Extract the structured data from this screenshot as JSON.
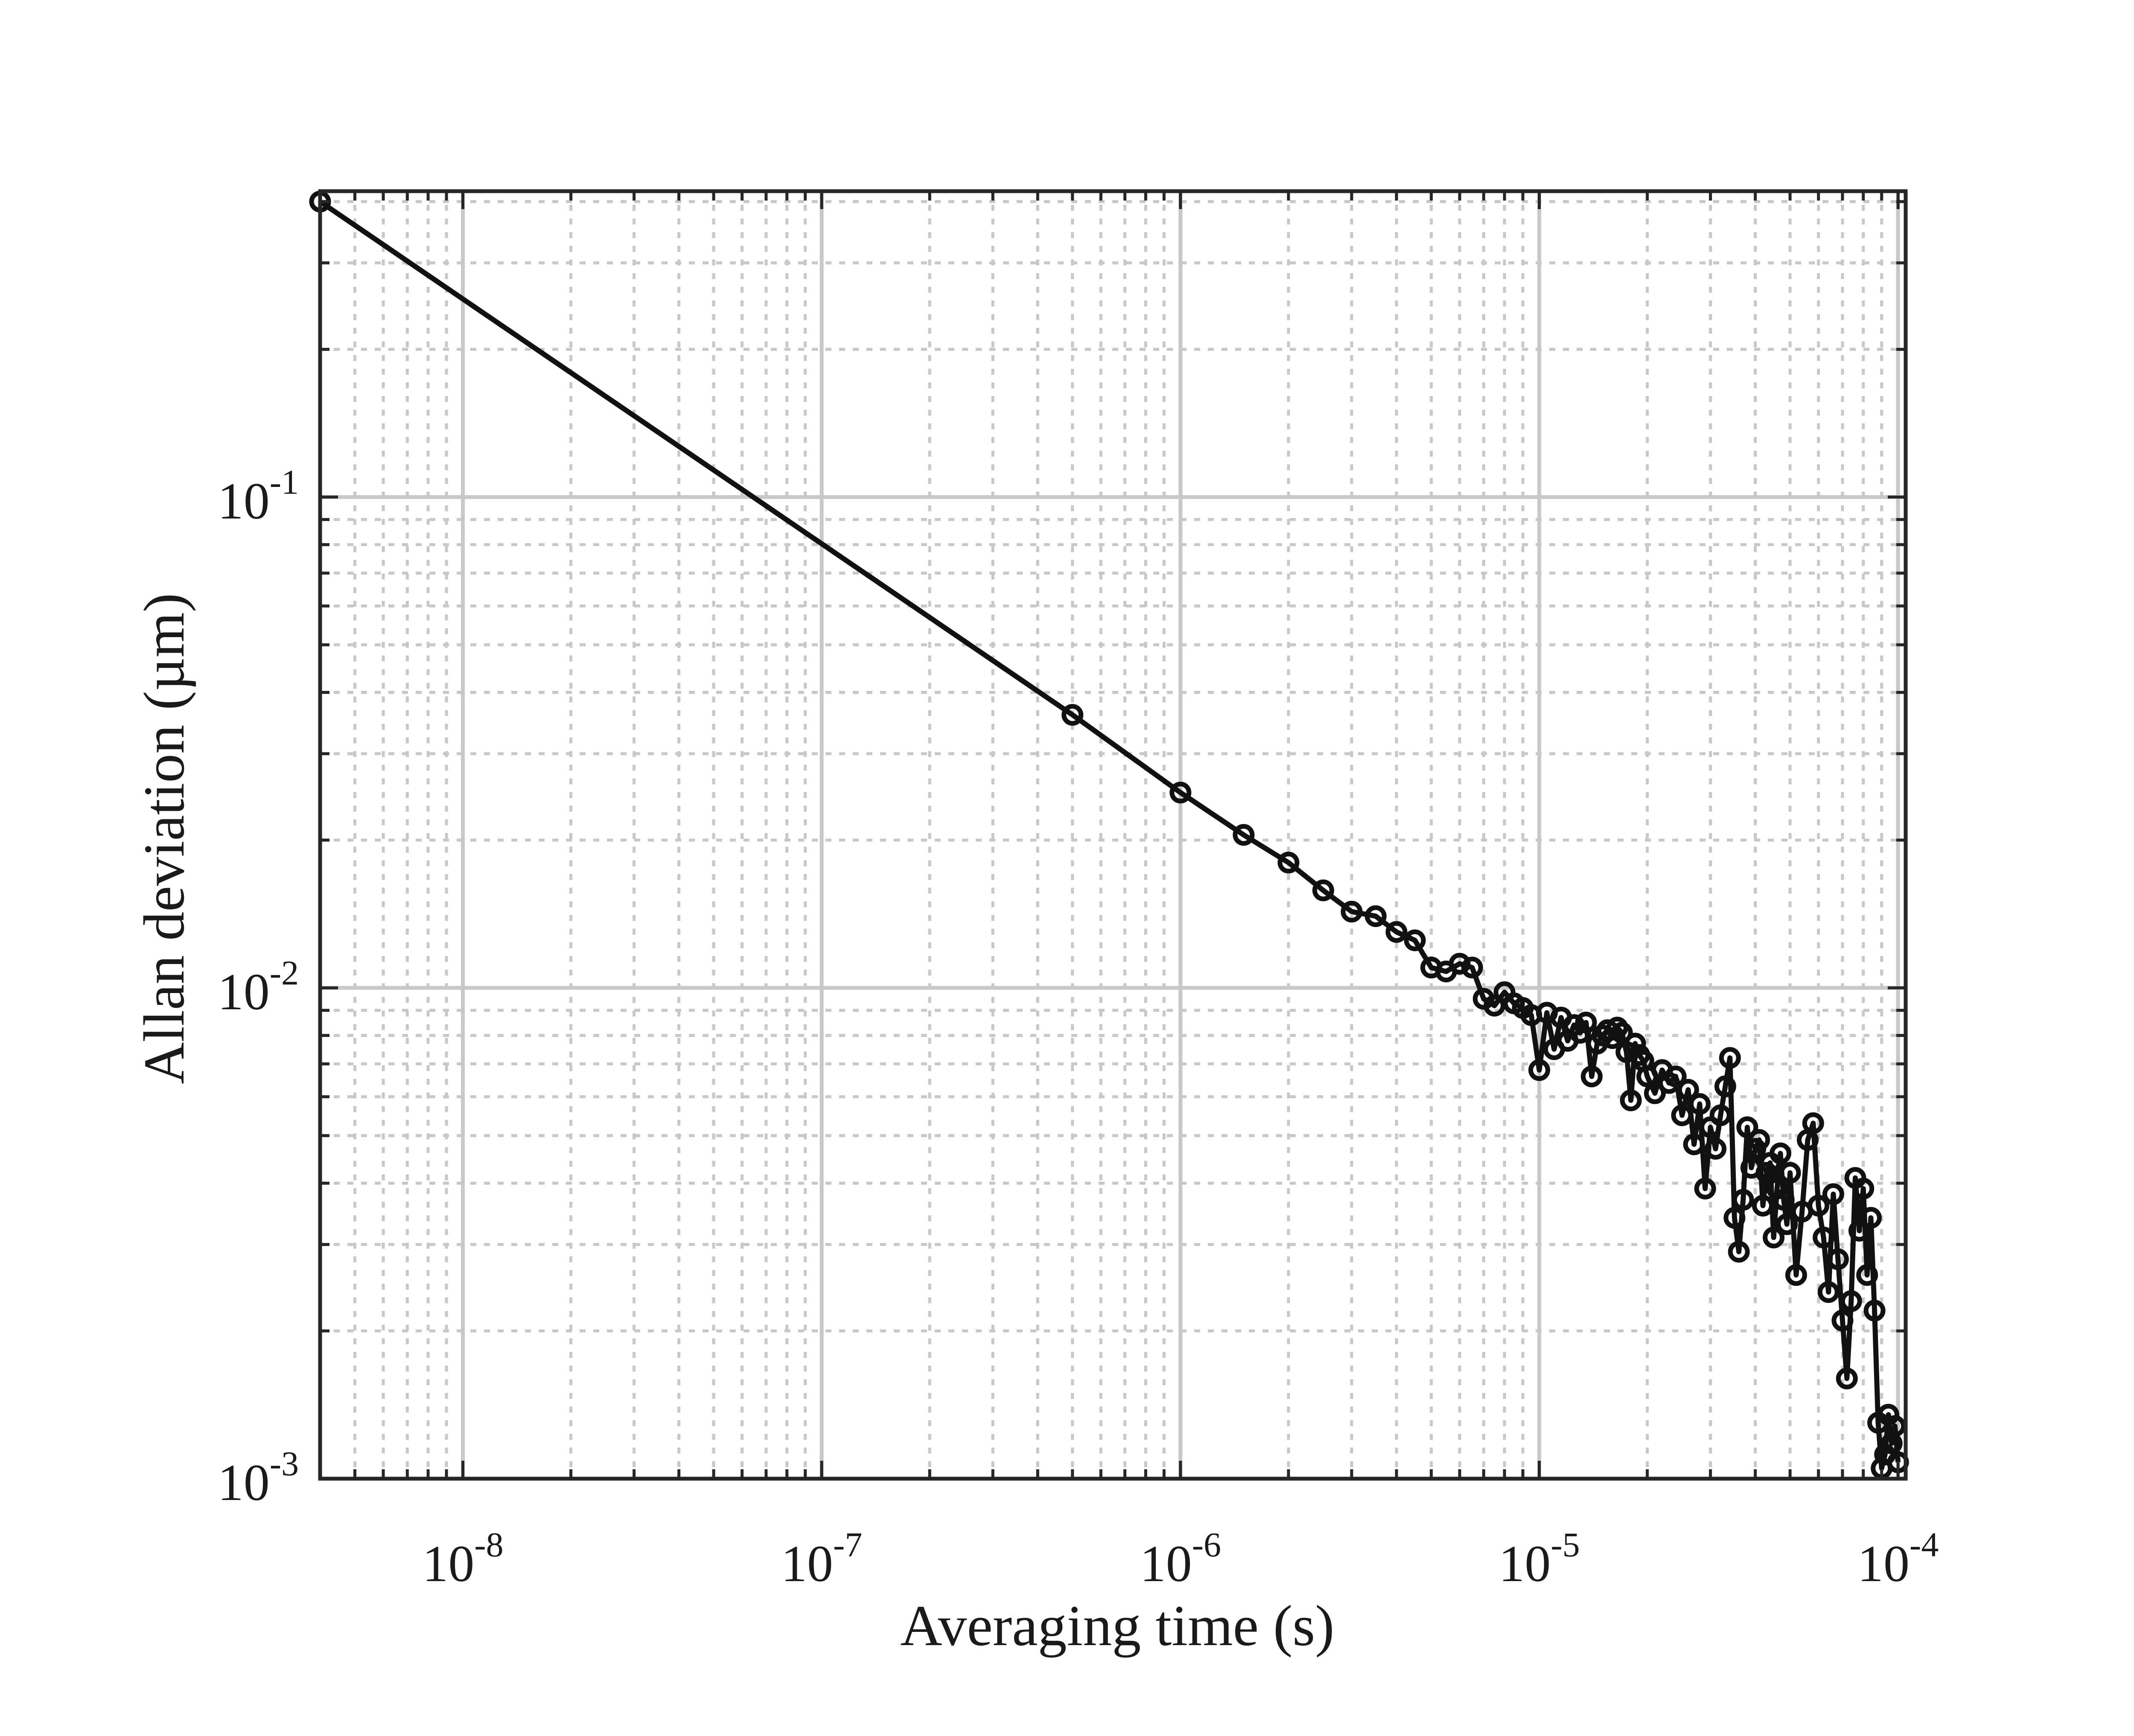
{
  "chart_data": {
    "type": "scatter",
    "title": "",
    "xlabel": "Averaging time (s)",
    "ylabel": "Allan deviation (µm)",
    "xscale": "log",
    "yscale": "log",
    "xlim": [
      4e-09,
      0.000105
    ],
    "ylim": [
      0.001,
      0.42
    ],
    "grid": true,
    "minor_grid": true,
    "legend": "none",
    "x_tick_labels": [
      {
        "value": 1e-08,
        "base": "10",
        "exp": "-8"
      },
      {
        "value": 1e-07,
        "base": "10",
        "exp": "-7"
      },
      {
        "value": 1e-06,
        "base": "10",
        "exp": "-6"
      },
      {
        "value": 1e-05,
        "base": "10",
        "exp": "-5"
      },
      {
        "value": 0.0001,
        "base": "10",
        "exp": "-4"
      }
    ],
    "y_tick_labels": [
      {
        "value": 0.001,
        "base": "10",
        "exp": "-3"
      },
      {
        "value": 0.01,
        "base": "10",
        "exp": "-2"
      },
      {
        "value": 0.1,
        "base": "10",
        "exp": "-1"
      }
    ],
    "colors": {
      "series": "#111111",
      "axes": "#262626",
      "grid": "#c8c8c8"
    },
    "series": [
      {
        "marker": "circle-open",
        "line": "solid",
        "x": [
          4e-09,
          5e-07,
          1e-06,
          1.5e-06,
          2e-06,
          2.5e-06,
          3e-06,
          3.5e-06,
          4e-06,
          4.5e-06,
          5e-06,
          5.5e-06,
          6e-06,
          6.5e-06,
          7e-06,
          7.5e-06,
          8e-06,
          8.5e-06,
          9e-06,
          9.5e-06,
          1e-05,
          1.05e-05,
          1.1e-05,
          1.15e-05,
          1.2e-05,
          1.25e-05,
          1.3e-05,
          1.35e-05,
          1.4e-05,
          1.45e-05,
          1.5e-05,
          1.55e-05,
          1.6e-05,
          1.65e-05,
          1.7e-05,
          1.75e-05,
          1.8e-05,
          1.85e-05,
          1.9e-05,
          1.95e-05,
          2e-05,
          2.1e-05,
          2.2e-05,
          2.3e-05,
          2.4e-05,
          2.5e-05,
          2.6e-05,
          2.7e-05,
          2.8e-05,
          2.9e-05,
          3e-05,
          3.1e-05,
          3.2e-05,
          3.3e-05,
          3.4e-05,
          3.5e-05,
          3.6e-05,
          3.7e-05,
          3.8e-05,
          3.9e-05,
          4e-05,
          4.1e-05,
          4.2e-05,
          4.3e-05,
          4.4e-05,
          4.5e-05,
          4.6e-05,
          4.7e-05,
          4.8e-05,
          4.9e-05,
          5e-05,
          5.2e-05,
          5.4e-05,
          5.6e-05,
          5.8e-05,
          6e-05,
          6.2e-05,
          6.4e-05,
          6.6e-05,
          6.8e-05,
          7e-05,
          7.2e-05,
          7.4e-05,
          7.6e-05,
          7.8e-05,
          8e-05,
          8.2e-05,
          8.4e-05,
          8.6e-05,
          8.8e-05,
          9e-05,
          9.2e-05,
          9.4e-05,
          9.6e-05,
          9.8e-05,
          0.0001
        ],
        "y": [
          0.4,
          0.036,
          0.025,
          0.0205,
          0.018,
          0.0158,
          0.0143,
          0.014,
          0.013,
          0.0125,
          0.011,
          0.0108,
          0.0112,
          0.011,
          0.0095,
          0.0092,
          0.0098,
          0.0093,
          0.0091,
          0.0088,
          0.0068,
          0.0089,
          0.0075,
          0.0087,
          0.0078,
          0.0084,
          0.0081,
          0.0085,
          0.0066,
          0.0077,
          0.008,
          0.0082,
          0.0079,
          0.0083,
          0.0081,
          0.0074,
          0.0059,
          0.0077,
          0.0073,
          0.0071,
          0.0066,
          0.0061,
          0.0068,
          0.0064,
          0.0066,
          0.0055,
          0.0062,
          0.0048,
          0.0058,
          0.0039,
          0.0052,
          0.0047,
          0.0055,
          0.0063,
          0.0072,
          0.0034,
          0.0029,
          0.0037,
          0.0052,
          0.0043,
          0.0047,
          0.0049,
          0.0036,
          0.0042,
          0.0044,
          0.0031,
          0.0039,
          0.0046,
          0.0037,
          0.0033,
          0.0042,
          0.0026,
          0.0035,
          0.0049,
          0.0053,
          0.0036,
          0.0031,
          0.0024,
          0.0038,
          0.0028,
          0.0021,
          0.0016,
          0.0023,
          0.0041,
          0.0032,
          0.0039,
          0.0026,
          0.0034,
          0.0022,
          0.0013,
          0.00105,
          0.00112,
          0.00135,
          0.00118,
          0.00128,
          0.00108
        ]
      }
    ]
  }
}
